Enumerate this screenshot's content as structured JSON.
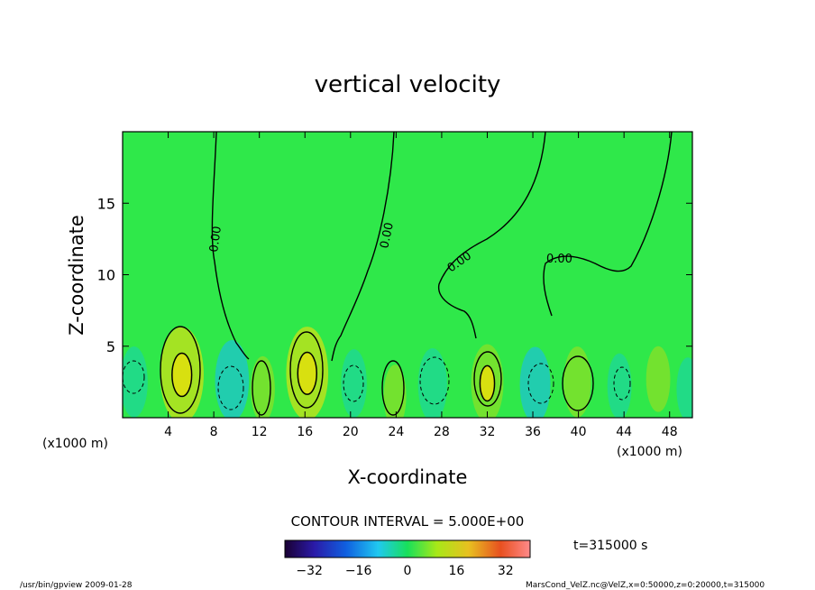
{
  "chart_data": {
    "type": "heatmap",
    "title": "vertical velocity",
    "xlabel": "X-coordinate",
    "ylabel": "Z-coordinate",
    "x_unit_label": "(x1000 m)",
    "x_unit_label_right": "(x1000 m)",
    "xlim": [
      0,
      50
    ],
    "ylim": [
      0,
      20
    ],
    "x_ticks": [
      4,
      8,
      12,
      16,
      20,
      24,
      28,
      32,
      36,
      40,
      44,
      48
    ],
    "y_ticks": [
      5,
      10,
      15
    ],
    "contour_labels": [
      "0.00",
      "0.00",
      "0.00",
      "0.00"
    ],
    "contour_interval_text": "CONTOUR INTERVAL = 5.000E+00",
    "time_text": "t=315000 s",
    "colorbar": {
      "min": -40,
      "max": 40,
      "ticks": [
        -32,
        -16,
        0,
        16,
        32
      ]
    },
    "cells": [
      {
        "x": 1.0,
        "z": 2.5,
        "w": -8,
        "kind": "neg"
      },
      {
        "x": 5.2,
        "z": 3.0,
        "w": 18,
        "kind": "pos"
      },
      {
        "x": 9.6,
        "z": 2.6,
        "w": -12,
        "kind": "neg"
      },
      {
        "x": 12.3,
        "z": 2.0,
        "w": 6,
        "kind": "pos"
      },
      {
        "x": 16.2,
        "z": 3.1,
        "w": 17,
        "kind": "pos"
      },
      {
        "x": 20.3,
        "z": 2.4,
        "w": -7,
        "kind": "neg"
      },
      {
        "x": 23.9,
        "z": 1.5,
        "w": 5,
        "kind": "pos"
      },
      {
        "x": 27.2,
        "z": 2.3,
        "w": -9,
        "kind": "neg"
      },
      {
        "x": 32.0,
        "z": 2.4,
        "w": 11,
        "kind": "pos"
      },
      {
        "x": 36.2,
        "z": 2.3,
        "w": -10,
        "kind": "neg"
      },
      {
        "x": 39.9,
        "z": 2.5,
        "w": 8,
        "kind": "pos"
      },
      {
        "x": 43.6,
        "z": 2.2,
        "w": -6,
        "kind": "neg"
      },
      {
        "x": 47.0,
        "z": 2.7,
        "w": 6,
        "kind": "pos"
      },
      {
        "x": 49.6,
        "z": 2.0,
        "w": -5,
        "kind": "neg"
      }
    ]
  },
  "footer": {
    "left": "/usr/bin/gpview  2009-01-28",
    "right": "MarsCond_VelZ.nc@VelZ,x=0:50000,z=0:20000,t=315000"
  }
}
